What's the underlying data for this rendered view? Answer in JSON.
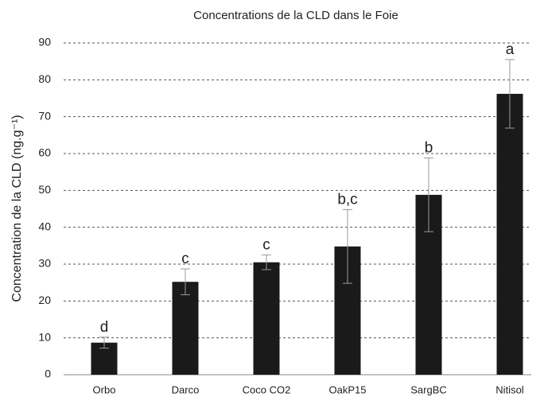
{
  "chart_data": {
    "type": "bar",
    "title": "Concentrations de la CLD dans le Foie",
    "ylabel": "Concentration de la CLD (ng.g⁻¹)",
    "categories": [
      "Orbo",
      "Darco",
      "Coco CO2",
      "OakP15",
      "SargBC",
      "Nitisol"
    ],
    "values": [
      8.7,
      25.2,
      30.5,
      34.8,
      48.8,
      76.2
    ],
    "errors": [
      1.5,
      3.5,
      2,
      10,
      10,
      9.3
    ],
    "annotations": [
      "d",
      "c",
      "c",
      "b,c",
      "b",
      "a"
    ],
    "color": "#1a1a1a",
    "error_color": "#999999",
    "ylim": [
      0,
      90
    ],
    "yticks": [
      0,
      10,
      20,
      30,
      40,
      50,
      60,
      70,
      80,
      90
    ],
    "grid": true
  }
}
